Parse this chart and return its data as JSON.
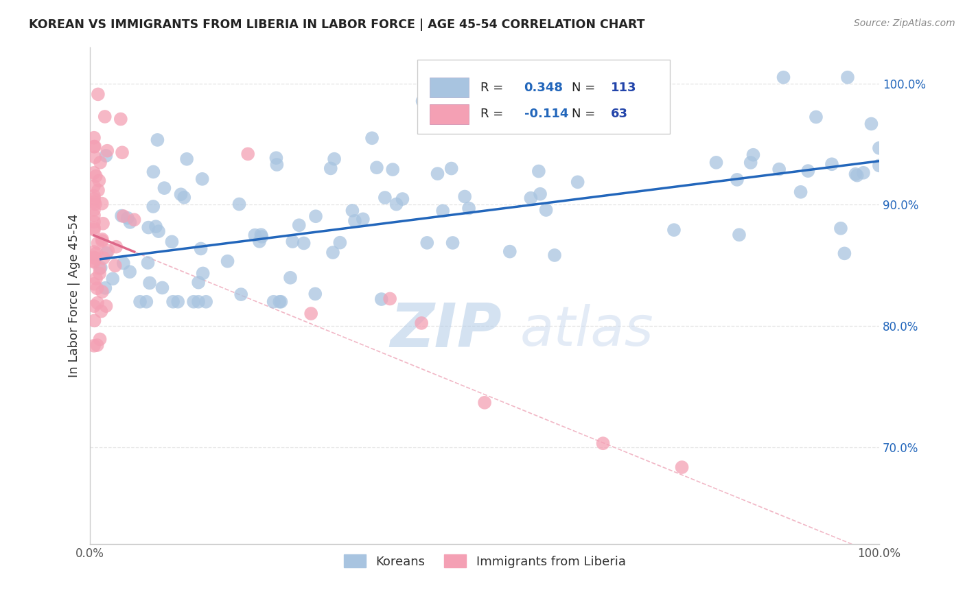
{
  "title": "KOREAN VS IMMIGRANTS FROM LIBERIA IN LABOR FORCE | AGE 45-54 CORRELATION CHART",
  "source": "Source: ZipAtlas.com",
  "ylabel": "In Labor Force | Age 45-54",
  "legend_label1": "Koreans",
  "legend_label2": "Immigrants from Liberia",
  "R1": 0.348,
  "N1": 113,
  "R2": -0.114,
  "N2": 63,
  "color_korean": "#a8c4e0",
  "color_liberia": "#f4a0b4",
  "color_korean_line": "#2266bb",
  "color_liberia_line": "#dd6688",
  "color_dashed_k": "#c8d8ec",
  "color_dashed_l": "#f0b0c0",
  "watermark_ZIP": "#b8cfe8",
  "watermark_atlas": "#c8d8ee",
  "background": "#ffffff",
  "grid_color": "#dddddd",
  "title_color": "#222222",
  "source_color": "#888888",
  "legend_R_color": "#2266bb",
  "legend_N_color": "#2244aa",
  "ymin": 0.62,
  "ymax": 1.03,
  "xmin": 0.0,
  "xmax": 1.0,
  "yticks": [
    0.7,
    0.8,
    0.9,
    1.0
  ],
  "ytick_labels": [
    "70.0%",
    "80.0%",
    "90.0%",
    "100.0%"
  ]
}
